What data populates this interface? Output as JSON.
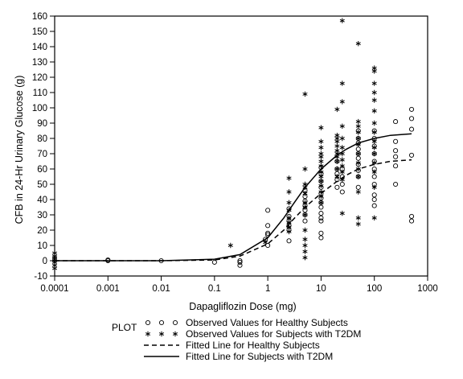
{
  "chart_data": {
    "type": "scatter",
    "xlabel": "Dapagliflozin Dose (mg)",
    "ylabel": "CFB in 24-Hr Urinary Glucose (g)",
    "x_scale": "log",
    "xlim": [
      0.0001,
      1000
    ],
    "ylim": [
      -10,
      160
    ],
    "x_ticks": [
      0.0001,
      0.001,
      0.01,
      0.1,
      1,
      10,
      100,
      1000
    ],
    "x_tick_labels": [
      "0.0001",
      "0.001",
      "0.01",
      "0.1",
      "1",
      "10",
      "100",
      "1000"
    ],
    "y_ticks": [
      -10,
      0,
      10,
      20,
      30,
      40,
      50,
      60,
      70,
      80,
      90,
      100,
      110,
      120,
      130,
      140,
      150,
      160
    ],
    "y_tick_labels": [
      "-10",
      "0",
      "10",
      "20",
      "30",
      "40",
      "50",
      "60",
      "70",
      "80",
      "90",
      "100",
      "110",
      "120",
      "130",
      "140",
      "150",
      "160"
    ],
    "grid": false,
    "legend_title": "PLOT",
    "legend_position": "bottom",
    "series": [
      {
        "name": "Observed Values for Healthy Subjects",
        "marker": "circle",
        "points": [
          [
            0.001,
            0
          ],
          [
            0.001,
            0.5
          ],
          [
            0.01,
            0
          ],
          [
            0.1,
            -1
          ],
          [
            0.3,
            -1
          ],
          [
            0.3,
            -3
          ],
          [
            0.3,
            0
          ],
          [
            0.9,
            14
          ],
          [
            1,
            10
          ],
          [
            1,
            17
          ],
          [
            1,
            18
          ],
          [
            1,
            23
          ],
          [
            1,
            33
          ],
          [
            2.5,
            13
          ],
          [
            2.5,
            20
          ],
          [
            2.5,
            23
          ],
          [
            2.5,
            26
          ],
          [
            2.5,
            29
          ],
          [
            2.5,
            34
          ],
          [
            5,
            26
          ],
          [
            5,
            30
          ],
          [
            5,
            33
          ],
          [
            5,
            36
          ],
          [
            5,
            39
          ],
          [
            5,
            42
          ],
          [
            5,
            46
          ],
          [
            10,
            15
          ],
          [
            10,
            18
          ],
          [
            10,
            26
          ],
          [
            10,
            28
          ],
          [
            10,
            31
          ],
          [
            10,
            35
          ],
          [
            10,
            38
          ],
          [
            10,
            41
          ],
          [
            10,
            44
          ],
          [
            10,
            48
          ],
          [
            10,
            52
          ],
          [
            10,
            57
          ],
          [
            10,
            61
          ],
          [
            20,
            48
          ],
          [
            20,
            53
          ],
          [
            20,
            57
          ],
          [
            20,
            60
          ],
          [
            20,
            65
          ],
          [
            25,
            45
          ],
          [
            25,
            50
          ],
          [
            25,
            55
          ],
          [
            25,
            60
          ],
          [
            50,
            48
          ],
          [
            50,
            55
          ],
          [
            50,
            59
          ],
          [
            50,
            63
          ],
          [
            50,
            67
          ],
          [
            50,
            70
          ],
          [
            50,
            73
          ],
          [
            50,
            77
          ],
          [
            50,
            80
          ],
          [
            50,
            85
          ],
          [
            100,
            36
          ],
          [
            100,
            40
          ],
          [
            100,
            43
          ],
          [
            100,
            50
          ],
          [
            100,
            55
          ],
          [
            100,
            60
          ],
          [
            100,
            65
          ],
          [
            100,
            70
          ],
          [
            100,
            75
          ],
          [
            100,
            80
          ],
          [
            100,
            85
          ],
          [
            250,
            50
          ],
          [
            250,
            62
          ],
          [
            250,
            68
          ],
          [
            250,
            72
          ],
          [
            250,
            78
          ],
          [
            250,
            91
          ],
          [
            500,
            26
          ],
          [
            500,
            29
          ],
          [
            500,
            69
          ],
          [
            500,
            86
          ],
          [
            500,
            93
          ],
          [
            500,
            99
          ]
        ]
      },
      {
        "name": "Observed Values for Subjects with T2DM",
        "marker": "star",
        "points": [
          [
            0.0001,
            -5
          ],
          [
            0.0001,
            -3
          ],
          [
            0.0001,
            -1
          ],
          [
            0.0001,
            0
          ],
          [
            0.0001,
            1
          ],
          [
            0.0001,
            2
          ],
          [
            0.0001,
            3
          ],
          [
            0.0001,
            5
          ],
          [
            0.2,
            10
          ],
          [
            0.9,
            12
          ],
          [
            2.5,
            19
          ],
          [
            2.5,
            22
          ],
          [
            2.5,
            25
          ],
          [
            2.5,
            28
          ],
          [
            2.5,
            33
          ],
          [
            2.5,
            38
          ],
          [
            2.5,
            45
          ],
          [
            2.5,
            54
          ],
          [
            5,
            2
          ],
          [
            5,
            6
          ],
          [
            5,
            10
          ],
          [
            5,
            14
          ],
          [
            5,
            20
          ],
          [
            5,
            30
          ],
          [
            5,
            35
          ],
          [
            5,
            38
          ],
          [
            5,
            44
          ],
          [
            5,
            48
          ],
          [
            5,
            50
          ],
          [
            5,
            60
          ],
          [
            5,
            109
          ],
          [
            10,
            38
          ],
          [
            10,
            42
          ],
          [
            10,
            45
          ],
          [
            10,
            49
          ],
          [
            10,
            52
          ],
          [
            10,
            55
          ],
          [
            10,
            58
          ],
          [
            10,
            62
          ],
          [
            10,
            65
          ],
          [
            10,
            68
          ],
          [
            10,
            70
          ],
          [
            10,
            74
          ],
          [
            10,
            78
          ],
          [
            10,
            87
          ],
          [
            20,
            55
          ],
          [
            20,
            60
          ],
          [
            20,
            65
          ],
          [
            20,
            68
          ],
          [
            20,
            70
          ],
          [
            20,
            72
          ],
          [
            20,
            75
          ],
          [
            20,
            78
          ],
          [
            20,
            80
          ],
          [
            20,
            82
          ],
          [
            20,
            99
          ],
          [
            25,
            31
          ],
          [
            25,
            53
          ],
          [
            25,
            58
          ],
          [
            25,
            62
          ],
          [
            25,
            66
          ],
          [
            25,
            70
          ],
          [
            25,
            74
          ],
          [
            25,
            80
          ],
          [
            25,
            88
          ],
          [
            25,
            104
          ],
          [
            25,
            116
          ],
          [
            25,
            157
          ],
          [
            50,
            24
          ],
          [
            50,
            28
          ],
          [
            50,
            45
          ],
          [
            50,
            55
          ],
          [
            50,
            60
          ],
          [
            50,
            64
          ],
          [
            50,
            70
          ],
          [
            50,
            76
          ],
          [
            50,
            80
          ],
          [
            50,
            84
          ],
          [
            50,
            88
          ],
          [
            50,
            91
          ],
          [
            50,
            142
          ],
          [
            100,
            28
          ],
          [
            100,
            48
          ],
          [
            100,
            58
          ],
          [
            100,
            64
          ],
          [
            100,
            70
          ],
          [
            100,
            74
          ],
          [
            100,
            78
          ],
          [
            100,
            84
          ],
          [
            100,
            90
          ],
          [
            100,
            98
          ],
          [
            100,
            105
          ],
          [
            100,
            110
          ],
          [
            100,
            116
          ],
          [
            100,
            124
          ],
          [
            100,
            126
          ]
        ]
      },
      {
        "name": "Fitted Line for Healthy Subjects",
        "style": "dashed",
        "points": [
          [
            0.0001,
            0
          ],
          [
            0.01,
            0
          ],
          [
            0.1,
            0.5
          ],
          [
            0.3,
            3
          ],
          [
            1,
            11
          ],
          [
            2,
            20
          ],
          [
            3,
            27
          ],
          [
            5,
            35
          ],
          [
            10,
            44
          ],
          [
            20,
            52
          ],
          [
            30,
            56
          ],
          [
            50,
            60
          ],
          [
            100,
            63
          ],
          [
            200,
            65
          ],
          [
            500,
            66
          ]
        ]
      },
      {
        "name": "Fitted Line for Subjects with T2DM",
        "style": "solid",
        "points": [
          [
            0.0001,
            0
          ],
          [
            0.01,
            0
          ],
          [
            0.1,
            1
          ],
          [
            0.3,
            4
          ],
          [
            1,
            15
          ],
          [
            2,
            28
          ],
          [
            3,
            37
          ],
          [
            5,
            48
          ],
          [
            10,
            60
          ],
          [
            20,
            69
          ],
          [
            30,
            73
          ],
          [
            50,
            77
          ],
          [
            100,
            80
          ],
          [
            200,
            82
          ],
          [
            500,
            83
          ]
        ]
      }
    ]
  }
}
